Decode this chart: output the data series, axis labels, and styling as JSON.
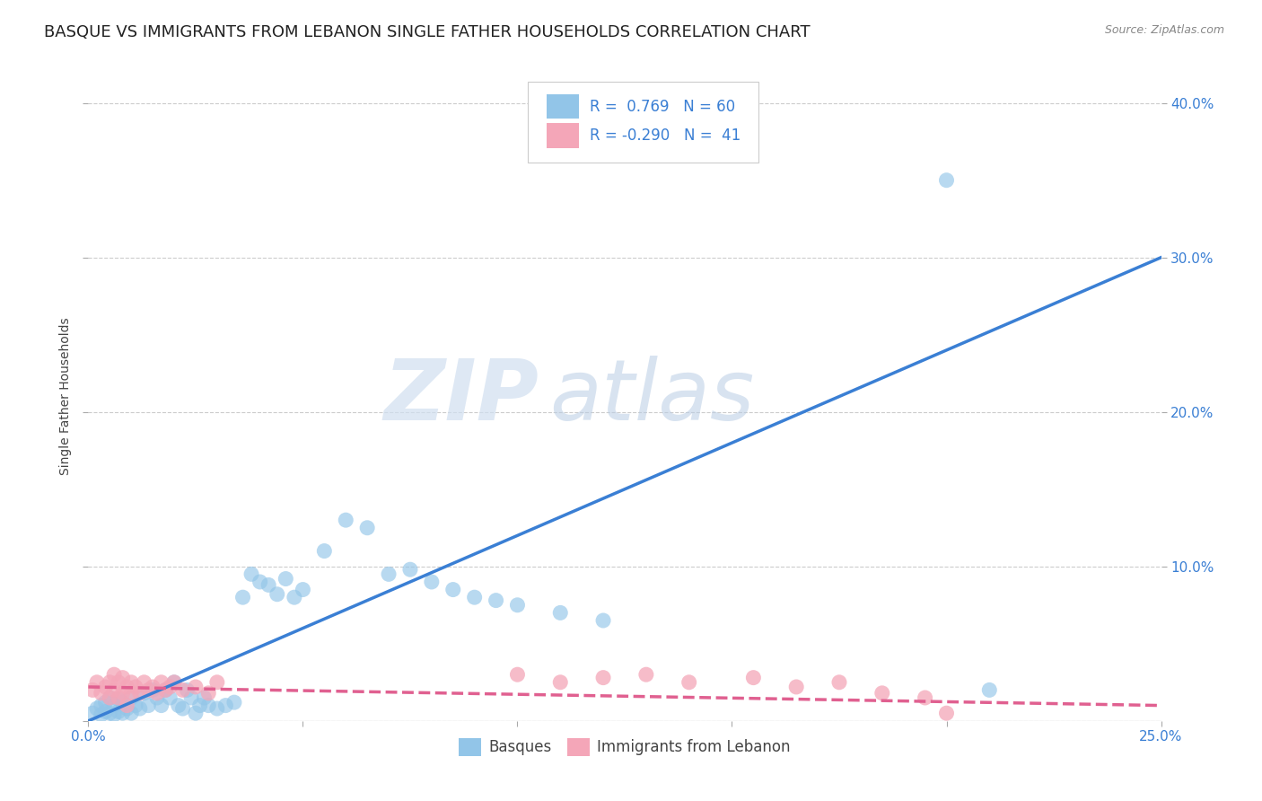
{
  "title": "BASQUE VS IMMIGRANTS FROM LEBANON SINGLE FATHER HOUSEHOLDS CORRELATION CHART",
  "source": "Source: ZipAtlas.com",
  "ylabel": "Single Father Households",
  "xlim": [
    0.0,
    0.25
  ],
  "ylim": [
    0.0,
    0.42
  ],
  "xticks": [
    0.0,
    0.05,
    0.1,
    0.15,
    0.2,
    0.25
  ],
  "yticks": [
    0.1,
    0.2,
    0.3,
    0.4
  ],
  "background_color": "#ffffff",
  "watermark_zip": "ZIP",
  "watermark_atlas": "atlas",
  "blue_R": 0.769,
  "blue_N": 60,
  "pink_R": -0.29,
  "pink_N": 41,
  "blue_color": "#92c5e8",
  "pink_color": "#f4a6b8",
  "blue_line_color": "#3a7fd4",
  "pink_line_color": "#e06090",
  "blue_line_x": [
    0.0,
    0.25
  ],
  "blue_line_y": [
    0.0,
    0.3
  ],
  "pink_line_x": [
    0.0,
    0.25
  ],
  "pink_line_y": [
    0.022,
    0.01
  ],
  "blue_scatter_x": [
    0.001,
    0.002,
    0.003,
    0.003,
    0.004,
    0.004,
    0.005,
    0.005,
    0.006,
    0.006,
    0.007,
    0.007,
    0.008,
    0.008,
    0.009,
    0.01,
    0.01,
    0.011,
    0.012,
    0.013,
    0.014,
    0.015,
    0.016,
    0.017,
    0.018,
    0.019,
    0.02,
    0.021,
    0.022,
    0.023,
    0.024,
    0.025,
    0.026,
    0.027,
    0.028,
    0.03,
    0.032,
    0.034,
    0.036,
    0.038,
    0.04,
    0.042,
    0.044,
    0.046,
    0.048,
    0.05,
    0.055,
    0.06,
    0.065,
    0.07,
    0.075,
    0.08,
    0.085,
    0.09,
    0.095,
    0.1,
    0.11,
    0.12,
    0.2,
    0.21
  ],
  "blue_scatter_y": [
    0.005,
    0.008,
    0.004,
    0.01,
    0.006,
    0.012,
    0.005,
    0.015,
    0.004,
    0.01,
    0.006,
    0.014,
    0.005,
    0.012,
    0.008,
    0.005,
    0.015,
    0.01,
    0.008,
    0.018,
    0.01,
    0.02,
    0.015,
    0.01,
    0.02,
    0.015,
    0.025,
    0.01,
    0.008,
    0.02,
    0.015,
    0.005,
    0.01,
    0.015,
    0.01,
    0.008,
    0.01,
    0.012,
    0.08,
    0.095,
    0.09,
    0.088,
    0.082,
    0.092,
    0.08,
    0.085,
    0.11,
    0.13,
    0.125,
    0.095,
    0.098,
    0.09,
    0.085,
    0.08,
    0.078,
    0.075,
    0.07,
    0.065,
    0.35,
    0.02
  ],
  "pink_scatter_x": [
    0.001,
    0.002,
    0.003,
    0.004,
    0.005,
    0.005,
    0.006,
    0.006,
    0.007,
    0.007,
    0.008,
    0.008,
    0.009,
    0.009,
    0.01,
    0.01,
    0.011,
    0.012,
    0.013,
    0.014,
    0.015,
    0.016,
    0.017,
    0.018,
    0.019,
    0.02,
    0.022,
    0.025,
    0.028,
    0.03,
    0.1,
    0.11,
    0.12,
    0.13,
    0.14,
    0.155,
    0.165,
    0.175,
    0.185,
    0.195,
    0.2
  ],
  "pink_scatter_y": [
    0.02,
    0.025,
    0.018,
    0.022,
    0.015,
    0.025,
    0.02,
    0.03,
    0.015,
    0.025,
    0.018,
    0.028,
    0.022,
    0.01,
    0.018,
    0.025,
    0.022,
    0.018,
    0.025,
    0.02,
    0.022,
    0.018,
    0.025,
    0.02,
    0.022,
    0.025,
    0.02,
    0.022,
    0.018,
    0.025,
    0.03,
    0.025,
    0.028,
    0.03,
    0.025,
    0.028,
    0.022,
    0.025,
    0.018,
    0.015,
    0.005
  ],
  "legend_labels": [
    "Basques",
    "Immigrants from Lebanon"
  ],
  "grid_color": "#cccccc",
  "title_fontsize": 13,
  "axis_label_fontsize": 10,
  "tick_fontsize": 11,
  "tick_color": "#3a7fd4"
}
